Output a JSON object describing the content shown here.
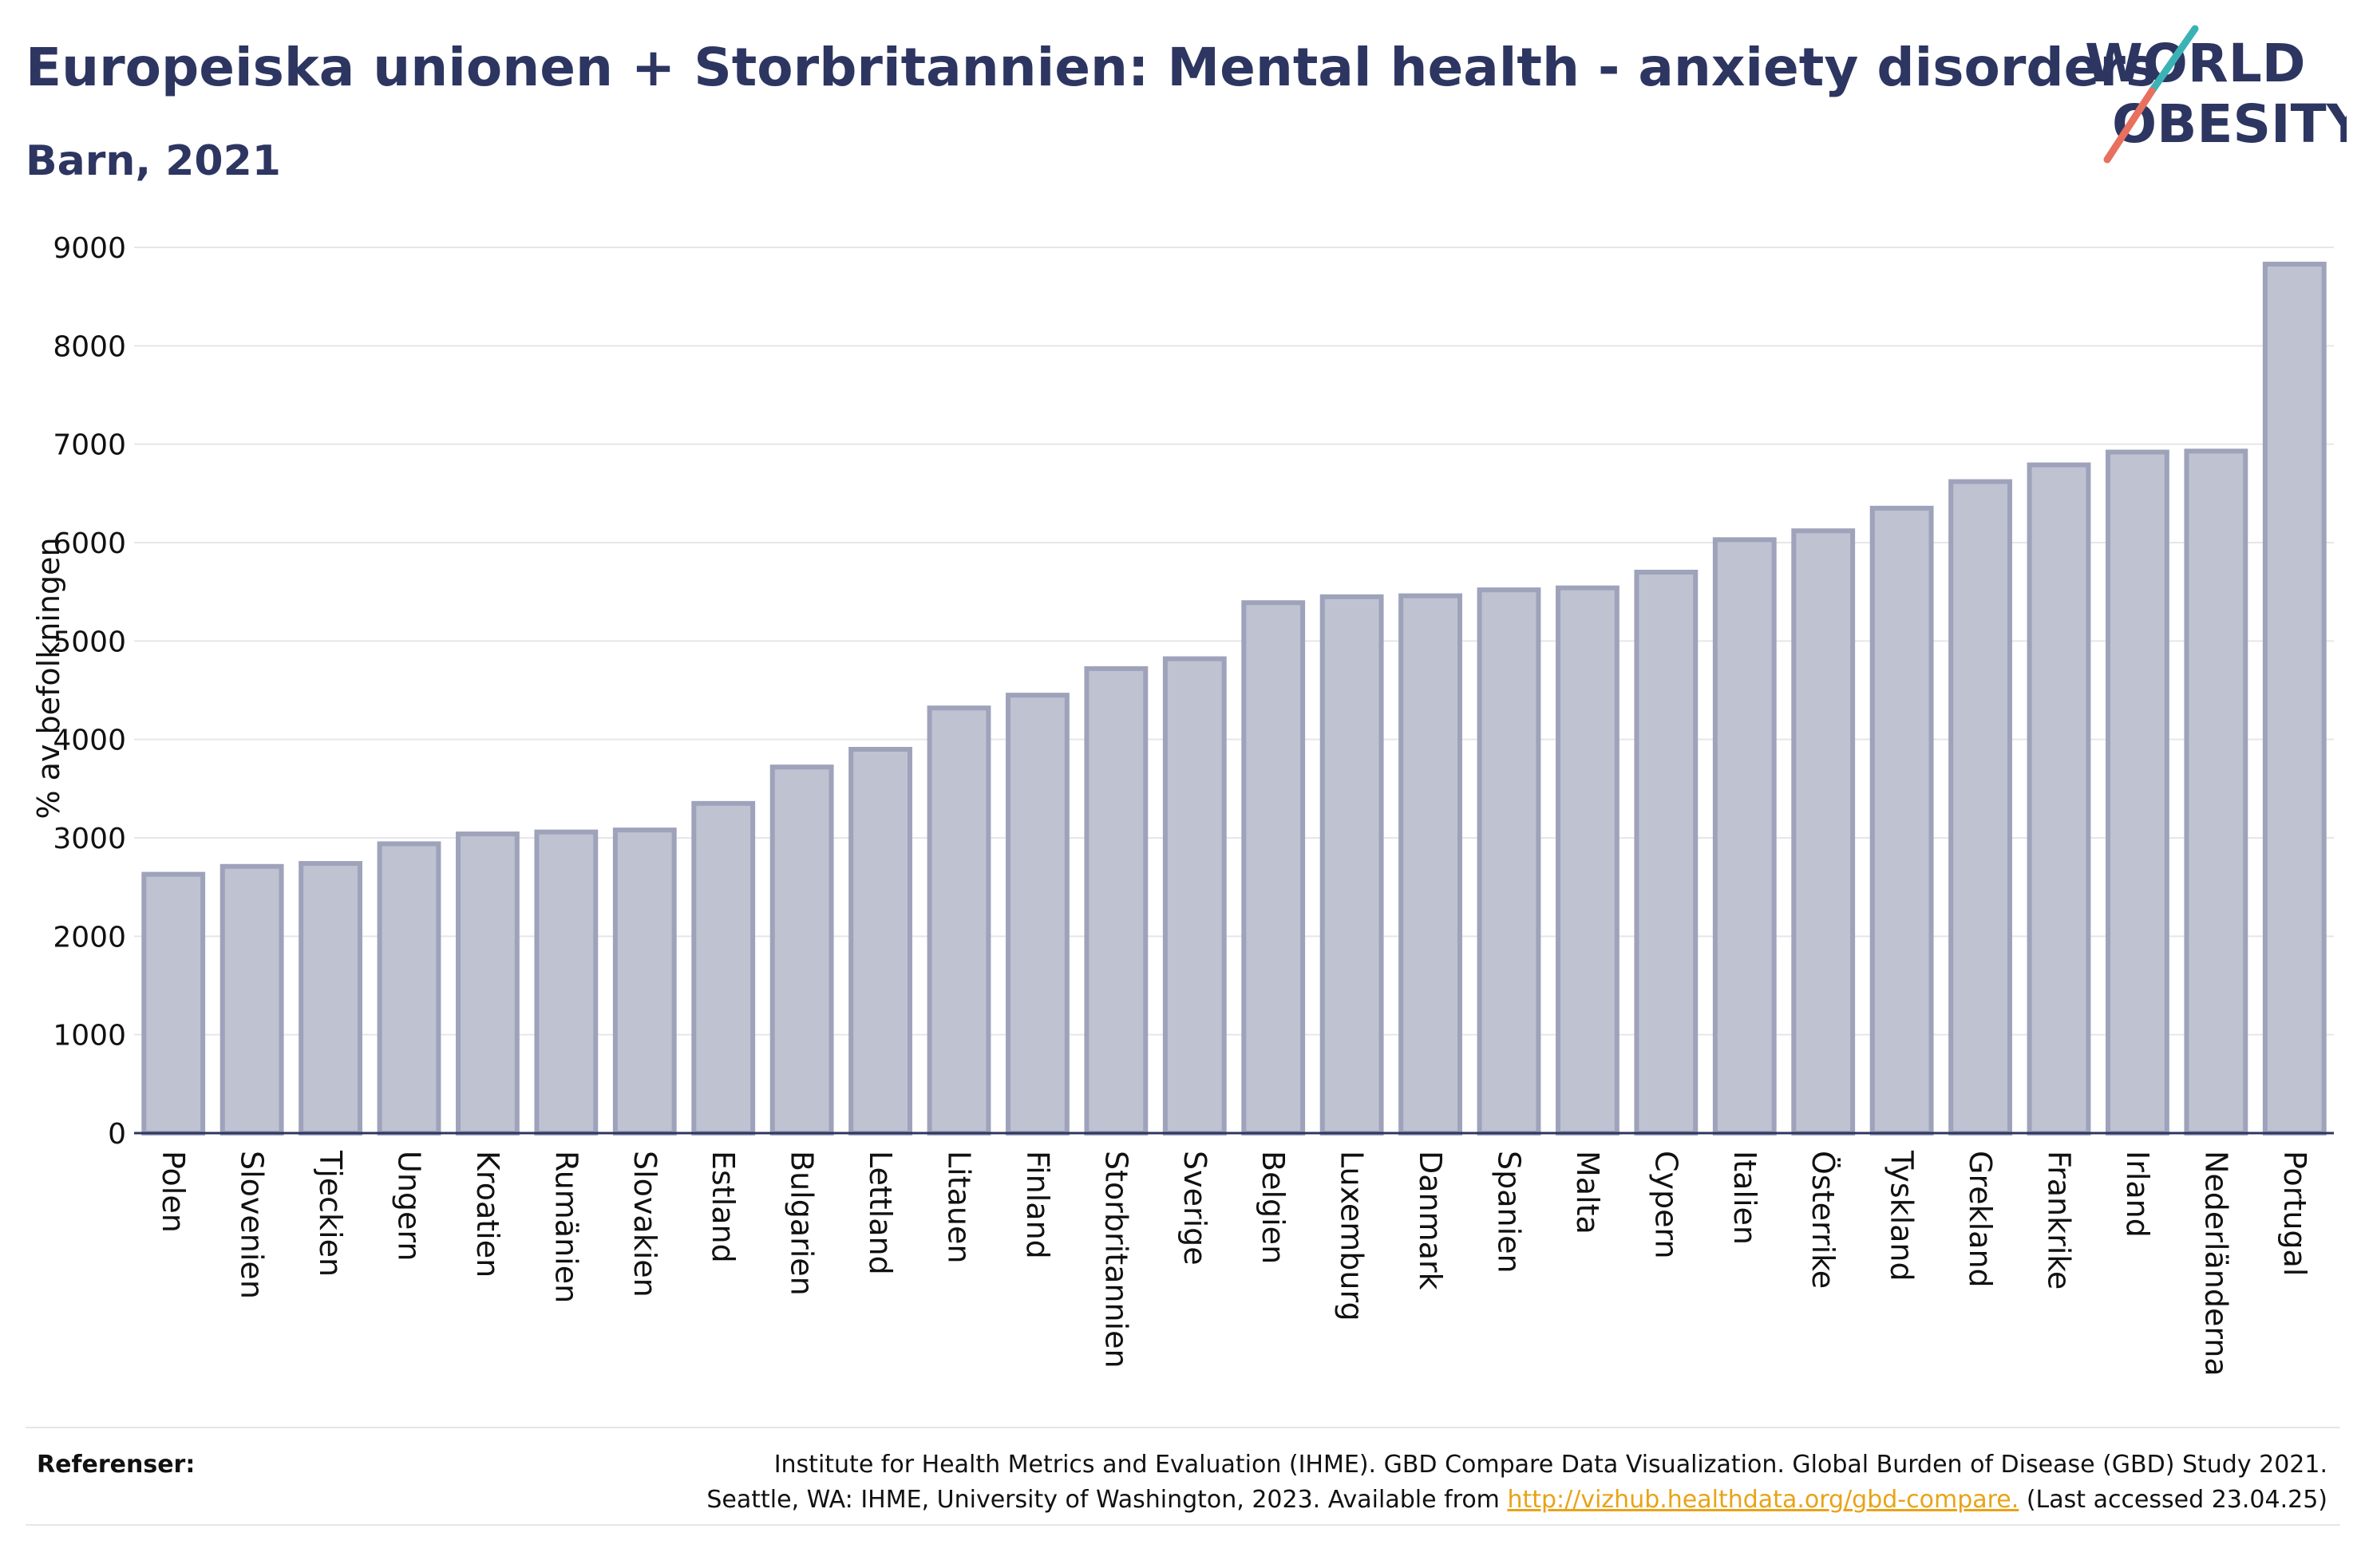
{
  "header": {
    "title": "Europeiska unionen + Storbritannien: Mental health - anxiety disorders",
    "subtitle": "Barn, 2021"
  },
  "logo": {
    "line1": "WORLD",
    "line2": "OBESITY"
  },
  "colors": {
    "bar_fill": "#bfc2d0",
    "bar_stroke": "#9ea2ba",
    "text": "#2d3561",
    "grid": "#e6e6ea",
    "link": "#e8a317"
  },
  "chart_data": {
    "type": "bar",
    "title": "Europeiska unionen + Storbritannien: Mental health - anxiety disorders",
    "subtitle": "Barn, 2021",
    "xlabel": "",
    "ylabel": "% av befolkningen",
    "ylim": [
      0,
      9000
    ],
    "yticks": [
      0,
      1000,
      2000,
      3000,
      4000,
      5000,
      6000,
      7000,
      8000,
      9000
    ],
    "grid": true,
    "categories": [
      "Polen",
      "Slovenien",
      "Tjeckien",
      "Ungern",
      "Kroatien",
      "Rumänien",
      "Slovakien",
      "Estland",
      "Bulgarien",
      "Lettland",
      "Litauen",
      "Finland",
      "Storbritannien",
      "Sverige",
      "Belgien",
      "Luxemburg",
      "Danmark",
      "Spanien",
      "Malta",
      "Cypern",
      "Italien",
      "Österrike",
      "Tyskland",
      "Grekland",
      "Frankrike",
      "Irland",
      "Nederländerna",
      "Portugal"
    ],
    "values": [
      2630,
      2710,
      2740,
      2940,
      3040,
      3060,
      3080,
      3350,
      3720,
      3900,
      4320,
      4450,
      4720,
      4820,
      5390,
      5450,
      5460,
      5520,
      5540,
      5700,
      6030,
      6120,
      6350,
      6620,
      6790,
      6920,
      6930,
      8830
    ]
  },
  "footer": {
    "ref_label": "Referenser:",
    "ref_line1": "Institute for Health Metrics and Evaluation (IHME). GBD Compare Data Visualization. Global Burden of Disease (GBD) Study 2021.",
    "ref_line2_pre": "Seattle, WA: IHME, University of Washington, 2023. Available from ",
    "ref_link": "http://vizhub.healthdata.org/gbd-compare.",
    "ref_line2_post": " (Last accessed 23.04.25)"
  }
}
